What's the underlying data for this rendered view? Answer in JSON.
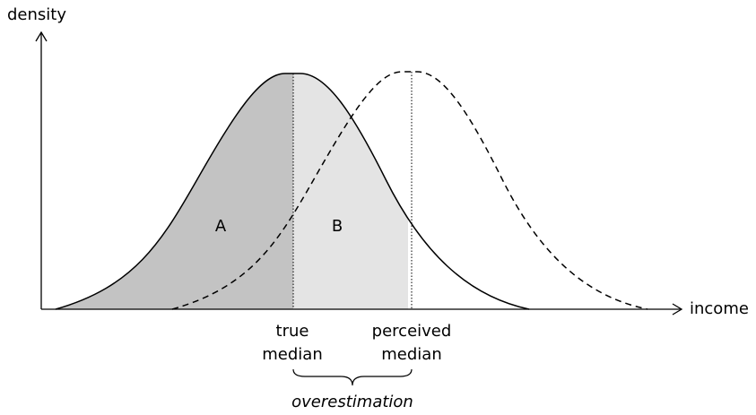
{
  "axes": {
    "y_label": "density",
    "x_label": "income"
  },
  "regions": [
    "A",
    "B"
  ],
  "markers": [
    {
      "lines": [
        "true",
        "median"
      ]
    },
    {
      "lines": [
        "perceived",
        "median"
      ]
    }
  ],
  "annotation": "overestimation"
}
